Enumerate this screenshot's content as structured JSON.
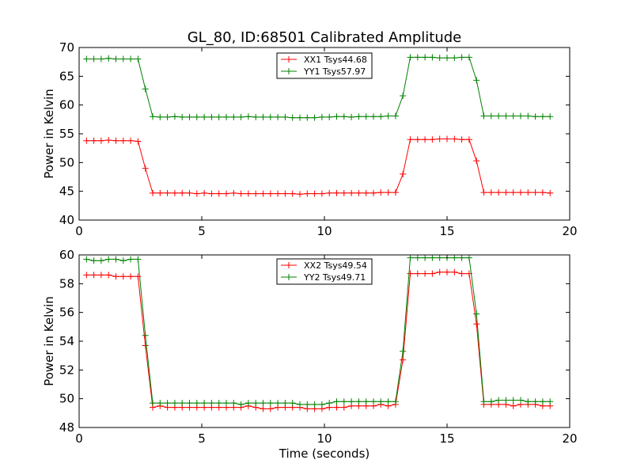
{
  "title": "GL_80, ID:68501 Calibrated Amplitude",
  "chart_data": [
    {
      "type": "line",
      "ylabel": "Power in Kelvin",
      "xlabel": "",
      "xlim": [
        0,
        20
      ],
      "ylim": [
        40,
        70
      ],
      "xticks": [
        "0",
        "5",
        "10",
        "15",
        "20"
      ],
      "yticks": [
        "40",
        "45",
        "50",
        "55",
        "60",
        "65",
        "70"
      ],
      "legend_position": "top-center",
      "x": [
        0.3,
        0.6,
        0.9,
        1.2,
        1.5,
        1.8,
        2.1,
        2.4,
        2.7,
        3.0,
        3.3,
        3.6,
        3.9,
        4.2,
        4.5,
        4.8,
        5.1,
        5.4,
        5.7,
        6.0,
        6.3,
        6.6,
        6.9,
        7.2,
        7.5,
        7.8,
        8.1,
        8.4,
        8.7,
        9.0,
        9.3,
        9.6,
        9.9,
        10.2,
        10.5,
        10.8,
        11.1,
        11.4,
        11.7,
        12.0,
        12.3,
        12.6,
        12.9,
        13.2,
        13.5,
        13.8,
        14.1,
        14.4,
        14.7,
        15.0,
        15.3,
        15.6,
        15.9,
        16.2,
        16.5,
        16.8,
        17.1,
        17.4,
        17.7,
        18.0,
        18.3,
        18.6,
        18.9,
        19.2
      ],
      "series": [
        {
          "name": "XX1 Tsys44.68",
          "color": "#ff0000",
          "values": [
            53.8,
            53.8,
            53.8,
            53.9,
            53.8,
            53.8,
            53.8,
            53.7,
            49.0,
            44.7,
            44.7,
            44.7,
            44.7,
            44.7,
            44.7,
            44.6,
            44.7,
            44.6,
            44.6,
            44.6,
            44.7,
            44.6,
            44.6,
            44.6,
            44.6,
            44.6,
            44.6,
            44.6,
            44.6,
            44.5,
            44.6,
            44.6,
            44.6,
            44.7,
            44.7,
            44.7,
            44.7,
            44.7,
            44.7,
            44.7,
            44.8,
            44.8,
            44.8,
            48.0,
            54.0,
            54.0,
            54.0,
            54.0,
            54.1,
            54.1,
            54.1,
            54.0,
            54.0,
            50.3,
            44.8,
            44.8,
            44.8,
            44.8,
            44.8,
            44.8,
            44.8,
            44.8,
            44.8,
            44.7
          ]
        },
        {
          "name": "YY1 Tsys57.97",
          "color": "#008000",
          "values": [
            68.0,
            68.0,
            68.0,
            68.1,
            68.0,
            68.0,
            68.0,
            68.0,
            62.8,
            58.0,
            57.9,
            57.9,
            58.0,
            57.9,
            57.9,
            57.9,
            57.9,
            57.9,
            57.9,
            57.9,
            57.9,
            57.9,
            58.0,
            57.9,
            57.9,
            57.9,
            57.9,
            57.9,
            57.8,
            57.8,
            57.8,
            57.8,
            57.9,
            57.9,
            58.0,
            58.0,
            57.9,
            58.0,
            58.0,
            58.0,
            58.0,
            58.1,
            58.1,
            61.6,
            68.3,
            68.3,
            68.3,
            68.3,
            68.2,
            68.2,
            68.2,
            68.3,
            68.3,
            64.3,
            58.1,
            58.1,
            58.1,
            58.1,
            58.1,
            58.1,
            58.1,
            58.0,
            58.0,
            58.0
          ]
        }
      ]
    },
    {
      "type": "line",
      "ylabel": "Power in Kelvin",
      "xlabel": "Time (seconds)",
      "xlim": [
        0,
        20
      ],
      "ylim": [
        48,
        60
      ],
      "xticks": [
        "0",
        "5",
        "10",
        "15",
        "20"
      ],
      "yticks": [
        "48",
        "50",
        "52",
        "54",
        "56",
        "58",
        "60"
      ],
      "legend_position": "top-center",
      "x": [
        0.3,
        0.6,
        0.9,
        1.2,
        1.5,
        1.8,
        2.1,
        2.4,
        2.7,
        3.0,
        3.3,
        3.6,
        3.9,
        4.2,
        4.5,
        4.8,
        5.1,
        5.4,
        5.7,
        6.0,
        6.3,
        6.6,
        6.9,
        7.2,
        7.5,
        7.8,
        8.1,
        8.4,
        8.7,
        9.0,
        9.3,
        9.6,
        9.9,
        10.2,
        10.5,
        10.8,
        11.1,
        11.4,
        11.7,
        12.0,
        12.3,
        12.6,
        12.9,
        13.2,
        13.5,
        13.8,
        14.1,
        14.4,
        14.7,
        15.0,
        15.3,
        15.6,
        15.9,
        16.2,
        16.5,
        16.8,
        17.1,
        17.4,
        17.7,
        18.0,
        18.3,
        18.6,
        18.9,
        19.2
      ],
      "series": [
        {
          "name": "XX2 Tsys49.54",
          "color": "#ff0000",
          "values": [
            58.6,
            58.6,
            58.6,
            58.6,
            58.5,
            58.5,
            58.5,
            58.5,
            53.7,
            49.4,
            49.5,
            49.4,
            49.4,
            49.4,
            49.4,
            49.4,
            49.4,
            49.4,
            49.4,
            49.4,
            49.4,
            49.4,
            49.5,
            49.4,
            49.3,
            49.3,
            49.4,
            49.4,
            49.4,
            49.4,
            49.3,
            49.3,
            49.3,
            49.4,
            49.4,
            49.4,
            49.5,
            49.5,
            49.5,
            49.5,
            49.6,
            49.5,
            49.6,
            52.7,
            58.7,
            58.7,
            58.7,
            58.7,
            58.8,
            58.8,
            58.8,
            58.7,
            58.7,
            55.2,
            49.6,
            49.6,
            49.6,
            49.6,
            49.5,
            49.6,
            49.6,
            49.6,
            49.5,
            49.5
          ]
        },
        {
          "name": "YY2 Tsys49.71",
          "color": "#008000",
          "values": [
            59.7,
            59.6,
            59.6,
            59.7,
            59.7,
            59.6,
            59.7,
            59.7,
            54.4,
            49.7,
            49.7,
            49.7,
            49.7,
            49.7,
            49.7,
            49.7,
            49.7,
            49.7,
            49.7,
            49.7,
            49.7,
            49.6,
            49.7,
            49.7,
            49.7,
            49.7,
            49.7,
            49.7,
            49.7,
            49.6,
            49.6,
            49.6,
            49.6,
            49.7,
            49.8,
            49.8,
            49.8,
            49.8,
            49.8,
            49.8,
            49.8,
            49.8,
            49.8,
            53.3,
            59.8,
            59.8,
            59.8,
            59.8,
            59.8,
            59.8,
            59.8,
            59.8,
            59.8,
            55.9,
            49.8,
            49.8,
            49.9,
            49.9,
            49.9,
            49.9,
            49.8,
            49.8,
            49.8,
            49.8
          ]
        }
      ]
    }
  ]
}
